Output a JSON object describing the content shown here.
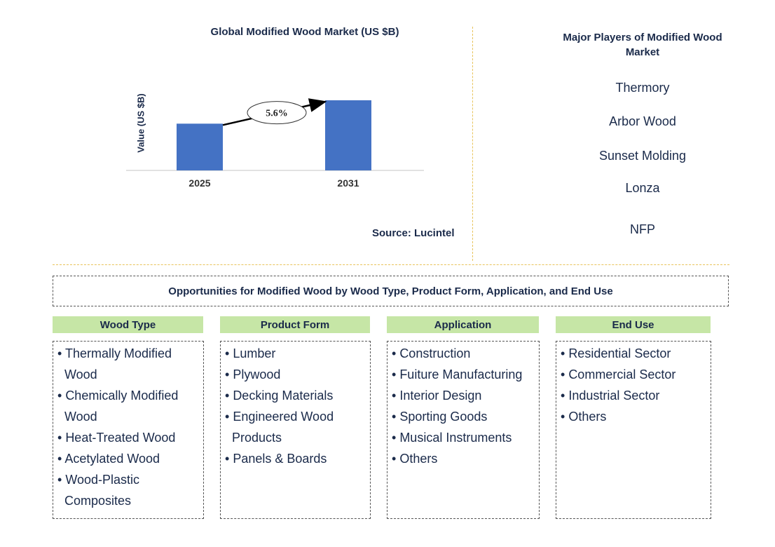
{
  "chart_data": {
    "type": "bar",
    "title": "Global Modified Wood Market (US $B)",
    "ylabel": "Value (US $B)",
    "categories": [
      "2025",
      "2031"
    ],
    "values": [
      1.0,
      1.5
    ],
    "annotation": "5.6%",
    "colors": {
      "bar": "#4472c4",
      "axis": "#d9d9d9"
    }
  },
  "source": "Source: Lucintel",
  "players": {
    "title": "Major Players of Modified Wood Market",
    "items": [
      "Thermory",
      "Arbor Wood",
      "Sunset Molding",
      "Lonza",
      "NFP"
    ]
  },
  "opportunities": {
    "title": "Opportunities for Modified Wood by Wood Type, Product Form, Application, and End Use",
    "categories": [
      {
        "header": "Wood Type",
        "items": [
          "Thermally Modified Wood",
          "Chemically Modified Wood",
          "Heat-Treated Wood",
          "Acetylated Wood",
          "Wood-Plastic Composites"
        ]
      },
      {
        "header": "Product Form",
        "items": [
          "Lumber",
          "Plywood",
          "Decking Materials",
          "Engineered Wood Products",
          "Panels & Boards"
        ]
      },
      {
        "header": "Application",
        "items": [
          "Construction",
          "Fuiture Manufacturing",
          "Interior Design",
          "Sporting Goods",
          "Musical Instruments",
          "Others"
        ]
      },
      {
        "header": "End Use",
        "items": [
          "Residential Sector",
          "Commercial Sector",
          "Industrial Sector",
          "Others"
        ]
      }
    ]
  }
}
